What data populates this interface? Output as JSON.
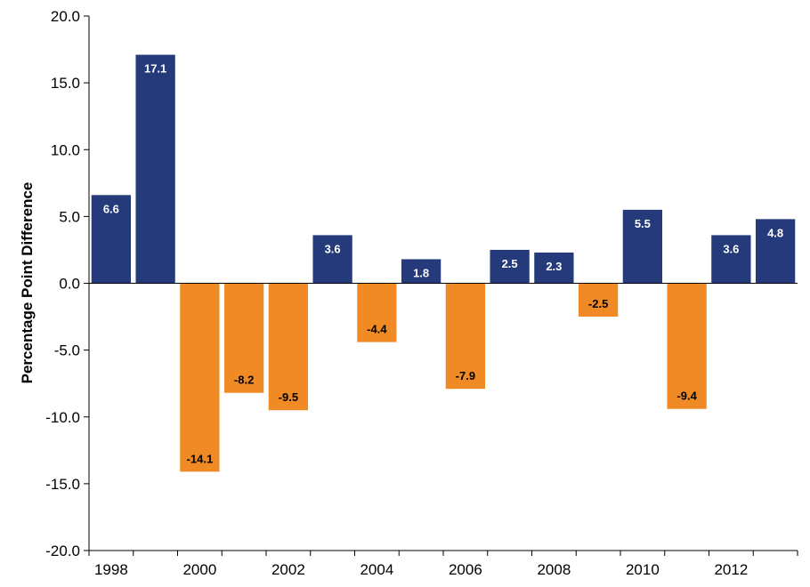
{
  "chart_data": {
    "type": "bar",
    "title": "",
    "xlabel": "",
    "ylabel": "Percentage Point Difference",
    "ylim": [
      -20,
      20
    ],
    "yticks": [
      20,
      15,
      10,
      5,
      0,
      -5,
      -10,
      -15,
      -20
    ],
    "ytick_labels": [
      "20.0",
      "15.0",
      "10.0",
      "5.0",
      "0.0",
      "-5.0",
      "-10.0",
      "-15.0",
      "-20.0"
    ],
    "categories": [
      "1998",
      "1999",
      "2000",
      "2001",
      "2002",
      "2003",
      "2004",
      "2005",
      "2006",
      "2007",
      "2008",
      "2009",
      "2010",
      "2011",
      "2012",
      "2013"
    ],
    "xtick_labels": [
      "1998",
      "2000",
      "2002",
      "2004",
      "2006",
      "2008",
      "2010",
      "2012"
    ],
    "values": [
      6.6,
      17.1,
      -14.1,
      -8.2,
      -9.5,
      3.6,
      -4.4,
      1.8,
      -7.9,
      2.5,
      2.3,
      -2.5,
      5.5,
      -9.4,
      3.6,
      4.8
    ],
    "value_labels": [
      "6.6",
      "17.1",
      "-14.1",
      "-8.2",
      "-9.5",
      "3.6",
      "-4.4",
      "1.8",
      "-7.9",
      "2.5",
      "2.3",
      "-2.5",
      "5.5",
      "-9.4",
      "3.6",
      "4.8"
    ],
    "grid": false,
    "colors": {
      "positive": "#253a7a",
      "negative": "#f08a24",
      "positive_label": "#ffffff",
      "negative_label": "#000000"
    }
  }
}
